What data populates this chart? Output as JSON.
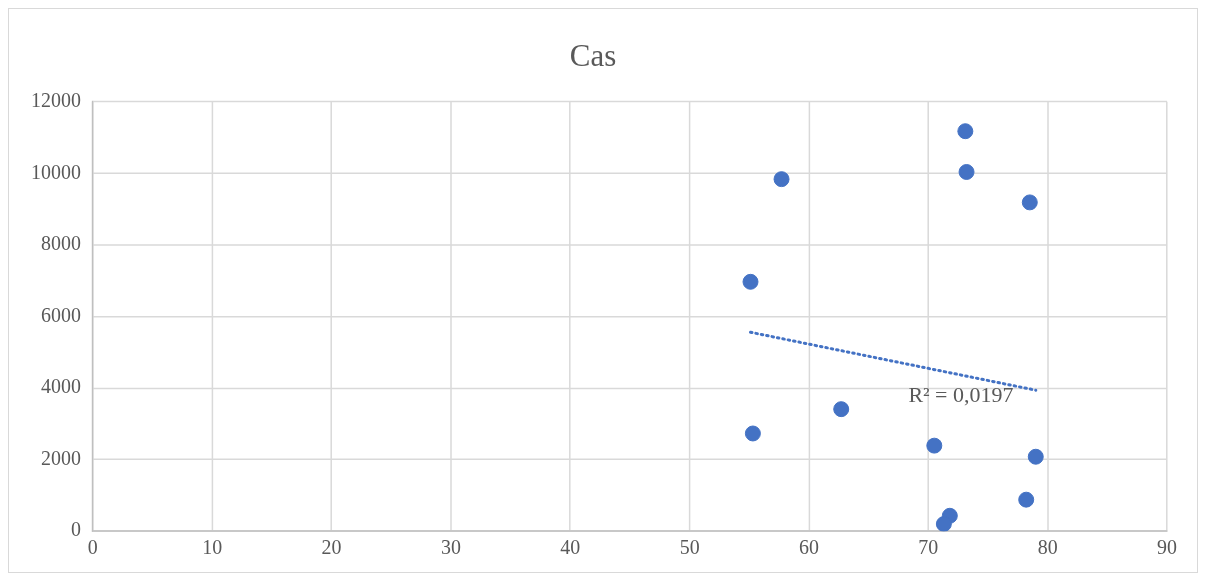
{
  "chart_data": {
    "type": "scatter",
    "title": "Cas",
    "xlim": [
      0,
      90
    ],
    "xticks": [
      0,
      10,
      20,
      30,
      40,
      50,
      60,
      70,
      80,
      90
    ],
    "ylim": [
      0,
      12000
    ],
    "yticks": [
      0,
      2000,
      4000,
      6000,
      8000,
      10000,
      12000
    ],
    "grid": true,
    "legend": false,
    "series": [
      {
        "marker": "circle",
        "color": "#4472c4",
        "x": [
          57.7,
          73.1,
          73.2,
          78.5,
          55.1,
          55.3,
          62.7,
          70.5,
          79.0,
          78.2,
          71.8,
          71.3
        ],
        "values": [
          9840,
          11180,
          10040,
          9190,
          6970,
          2730,
          3410,
          2390,
          2080,
          880,
          430,
          200
        ]
      },
      {
        "type": "line",
        "color": "#4472c4",
        "line_style": "dotted",
        "x": [
          55.1,
          79.0
        ],
        "values": [
          5560,
          3940
        ]
      }
    ],
    "annotations": [
      "R² = 0,0197"
    ]
  }
}
